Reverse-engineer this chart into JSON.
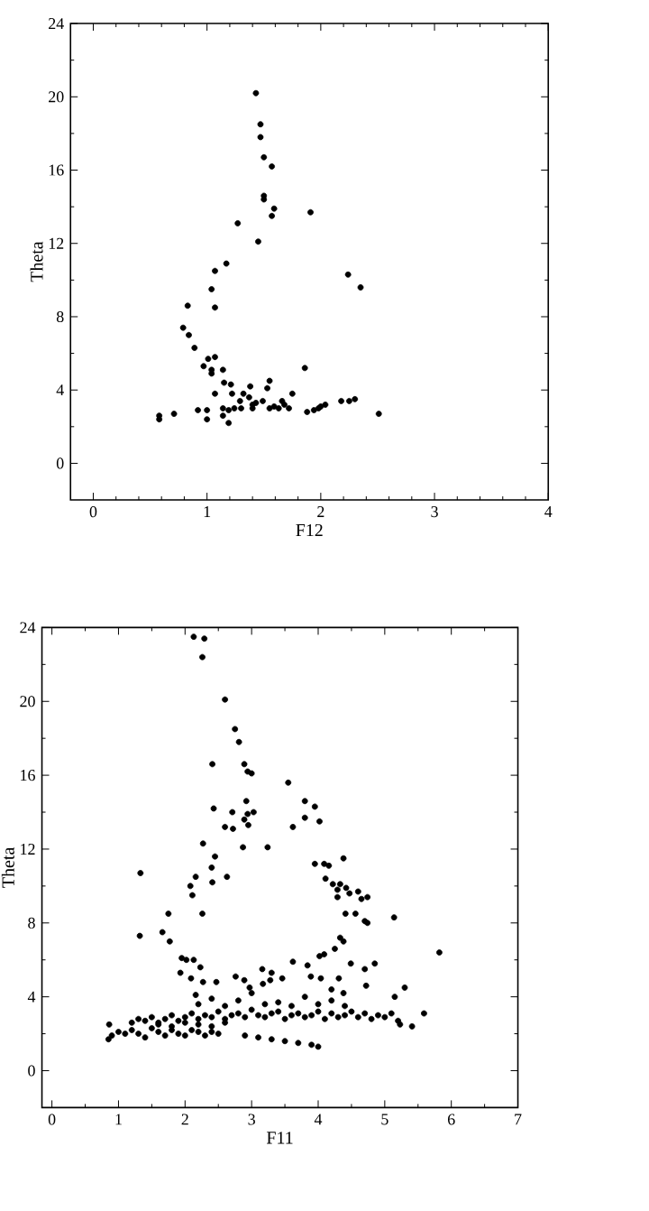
{
  "chart_data": [
    {
      "type": "scatter",
      "xlabel": "F12",
      "ylabel": "Theta",
      "color": "#000000",
      "marker": "circle",
      "xlim": [
        -0.2,
        4
      ],
      "ylim": [
        -2,
        24
      ],
      "xticks": [
        0,
        1,
        2,
        3,
        4
      ],
      "yticks": [
        0,
        4,
        8,
        12,
        16,
        20,
        24
      ],
      "x": [
        1.43,
        1.47,
        1.47,
        1.5,
        1.57,
        1.5,
        1.5,
        1.59,
        1.57,
        1.91,
        1.27,
        1.45,
        1.17,
        1.07,
        2.24,
        2.35,
        1.04,
        1.07,
        0.83,
        0.79,
        0.84,
        0.89,
        1.01,
        1.07,
        0.97,
        1.04,
        1.04,
        1.14,
        1.86,
        1.15,
        1.21,
        1.38,
        1.55,
        1.53,
        1.07,
        1.22,
        1.32,
        1.75,
        1.37,
        1.29,
        1.43,
        1.4,
        1.49,
        1.59,
        1.66,
        1.63,
        1.72,
        1.68,
        0.92,
        1.0,
        1.14,
        1.19,
        1.24,
        1.3,
        1.14,
        1.19,
        1.0,
        0.58,
        0.58,
        0.71,
        1.88,
        1.94,
        1.98,
        2.04,
        2.0,
        2.18,
        2.25,
        2.3,
        2.51,
        1.4,
        1.55
      ],
      "values": [
        20.2,
        18.5,
        17.8,
        16.7,
        16.2,
        14.6,
        14.4,
        13.9,
        13.5,
        13.7,
        13.1,
        12.1,
        10.9,
        10.5,
        10.3,
        9.6,
        9.5,
        8.5,
        8.6,
        7.4,
        7.0,
        6.3,
        5.7,
        5.8,
        5.3,
        5.1,
        4.9,
        5.1,
        5.2,
        4.4,
        4.3,
        4.2,
        4.5,
        4.1,
        3.8,
        3.8,
        3.8,
        3.8,
        3.6,
        3.4,
        3.3,
        3.2,
        3.4,
        3.1,
        3.4,
        3.0,
        3.0,
        3.2,
        2.9,
        2.9,
        3.0,
        2.9,
        3.0,
        3.0,
        2.6,
        2.2,
        2.4,
        2.6,
        2.4,
        2.7,
        2.8,
        2.9,
        3.0,
        3.2,
        3.1,
        3.4,
        3.4,
        3.5,
        2.7,
        3.0,
        3.0
      ]
    },
    {
      "type": "scatter",
      "xlabel": "F11",
      "ylabel": "Theta",
      "color": "#000000",
      "marker": "circle",
      "xlim": [
        -0.15,
        7
      ],
      "ylim": [
        -2,
        24
      ],
      "xticks": [
        0,
        1,
        2,
        3,
        4,
        5,
        6,
        7
      ],
      "yticks": [
        0,
        4,
        8,
        12,
        16,
        20,
        24
      ],
      "x": [
        2.13,
        2.29,
        2.26,
        2.6,
        2.75,
        2.81,
        2.41,
        2.89,
        2.94,
        3.0,
        3.55,
        3.8,
        3.95,
        3.8,
        4.02,
        3.62,
        2.92,
        2.94,
        3.03,
        2.89,
        2.95,
        2.43,
        2.71,
        2.6,
        2.72,
        2.87,
        3.24,
        2.27,
        2.45,
        1.33,
        2.16,
        2.08,
        2.11,
        2.4,
        2.41,
        2.63,
        2.26,
        1.75,
        1.32,
        1.66,
        1.77,
        3.95,
        4.09,
        4.16,
        4.38,
        4.11,
        4.22,
        4.29,
        4.33,
        4.42,
        4.47,
        4.6,
        4.74,
        4.65,
        4.29,
        4.41,
        4.56,
        4.7,
        4.74,
        5.14,
        5.82,
        4.33,
        4.38,
        4.25,
        4.09,
        4.02,
        3.62,
        3.84,
        3.89,
        4.04,
        4.31,
        4.49,
        4.7,
        4.85,
        3.16,
        3.3,
        3.46,
        3.28,
        1.95,
        2.02,
        2.13,
        2.23,
        1.93,
        2.09,
        2.27,
        2.47,
        2.16,
        2.76,
        2.89,
        2.97,
        3.17,
        4.2,
        4.38,
        4.72,
        5.15,
        5.3,
        0.86,
        0.85,
        5.23,
        5.41,
        5.59,
        0.9,
        1.0,
        1.1,
        1.2,
        1.3,
        1.4,
        1.5,
        1.6,
        1.7,
        1.8,
        1.9,
        2.0,
        2.1,
        2.2,
        2.3,
        2.4,
        2.5,
        1.2,
        1.3,
        1.4,
        1.5,
        1.6,
        1.7,
        1.8,
        1.9,
        2.0,
        2.1,
        2.2,
        2.3,
        2.4,
        2.5,
        2.6,
        2.7,
        2.8,
        2.9,
        3.0,
        3.1,
        3.2,
        3.3,
        3.4,
        3.5,
        3.6,
        3.7,
        3.8,
        3.9,
        4.0,
        4.1,
        4.2,
        4.3,
        4.4,
        4.5,
        4.6,
        4.7,
        4.8,
        4.9,
        5.0,
        5.1,
        5.2,
        2.2,
        2.4,
        2.6,
        2.8,
        3.0,
        3.2,
        3.4,
        3.6,
        3.8,
        4.0,
        4.2,
        4.4,
        2.9,
        3.1,
        3.3,
        3.5,
        3.7,
        3.9,
        4.0,
        1.6,
        1.8,
        2.0,
        2.2,
        2.4,
        2.6
      ],
      "values": [
        23.5,
        23.4,
        22.4,
        20.1,
        18.5,
        17.8,
        16.6,
        16.6,
        16.2,
        16.1,
        15.6,
        14.6,
        14.3,
        13.7,
        13.5,
        13.2,
        14.6,
        13.9,
        14.0,
        13.6,
        13.3,
        14.2,
        14.0,
        13.2,
        13.1,
        12.1,
        12.1,
        12.3,
        11.6,
        10.7,
        10.5,
        10.0,
        9.5,
        11.0,
        10.2,
        10.5,
        8.5,
        8.5,
        7.3,
        7.5,
        7.0,
        11.2,
        11.2,
        11.1,
        11.5,
        10.4,
        10.1,
        9.8,
        10.1,
        9.9,
        9.6,
        9.7,
        9.4,
        9.3,
        9.4,
        8.5,
        8.5,
        8.1,
        8.0,
        8.3,
        6.4,
        7.2,
        7.0,
        6.6,
        6.3,
        6.2,
        5.9,
        5.7,
        5.1,
        5.0,
        5.0,
        5.8,
        5.5,
        5.8,
        5.5,
        5.3,
        5.0,
        4.9,
        6.1,
        6.0,
        6.0,
        5.6,
        5.3,
        5.0,
        4.8,
        4.8,
        4.1,
        5.1,
        4.9,
        4.5,
        4.7,
        4.4,
        4.2,
        4.6,
        4.0,
        4.5,
        2.5,
        1.7,
        2.5,
        2.4,
        3.1,
        1.9,
        2.1,
        2.0,
        2.2,
        2.0,
        1.8,
        2.3,
        2.1,
        1.9,
        2.2,
        2.0,
        1.9,
        2.2,
        2.1,
        1.9,
        2.1,
        2.0,
        2.6,
        2.8,
        2.7,
        2.9,
        2.6,
        2.8,
        3.0,
        2.7,
        2.9,
        3.1,
        2.8,
        3.0,
        2.9,
        3.2,
        2.8,
        3.0,
        3.1,
        2.9,
        3.3,
        3.0,
        2.9,
        3.1,
        3.2,
        2.8,
        3.0,
        3.1,
        2.9,
        3.0,
        3.2,
        2.8,
        3.1,
        2.9,
        3.0,
        3.2,
        2.9,
        3.1,
        2.8,
        3.0,
        2.9,
        3.1,
        2.7,
        3.6,
        3.9,
        3.5,
        3.8,
        4.2,
        3.6,
        3.7,
        3.5,
        4.0,
        3.6,
        3.8,
        3.5,
        1.9,
        1.8,
        1.7,
        1.6,
        1.5,
        1.4,
        1.3,
        2.5,
        2.4,
        2.6,
        2.5,
        2.4,
        2.6
      ]
    }
  ]
}
